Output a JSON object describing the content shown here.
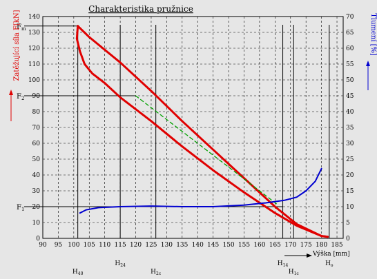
{
  "chart_data": {
    "type": "line",
    "title": "Charakteristika pružnice",
    "xlabel": "Výška [mm]",
    "ylabel_left": "Zatěžující síla F[kN]",
    "ylabel_right": "Tlumení [%]",
    "xlim": [
      90,
      187
    ],
    "ylim_left": [
      0,
      140
    ],
    "ylim_right": [
      0,
      70
    ],
    "grid": true,
    "x_ticks": [
      90,
      95,
      100,
      105,
      110,
      115,
      120,
      125,
      130,
      135,
      140,
      145,
      150,
      155,
      160,
      165,
      170,
      175,
      180,
      185
    ],
    "y_ticks_left": [
      0,
      10,
      20,
      30,
      40,
      50,
      60,
      70,
      80,
      90,
      100,
      110,
      120,
      130,
      140
    ],
    "y_ticks_right": [
      0,
      5,
      10,
      15,
      20,
      25,
      30,
      35,
      40,
      45,
      50,
      55,
      60,
      65,
      70
    ],
    "series": [
      {
        "role": "loading",
        "color": "#e00000",
        "axis": "left",
        "points": [
          [
            101.3,
            134
          ],
          [
            105,
            127
          ],
          [
            115,
            111
          ],
          [
            125,
            93
          ],
          [
            135,
            74
          ],
          [
            145,
            56
          ],
          [
            155,
            38
          ],
          [
            165,
            20
          ],
          [
            172,
            9
          ],
          [
            180,
            1.5
          ],
          [
            182,
            1
          ]
        ]
      },
      {
        "role": "unloading",
        "color": "#e00000",
        "axis": "left",
        "points": [
          [
            101.3,
            134
          ],
          [
            101,
            126
          ],
          [
            102,
            118
          ],
          [
            103.5,
            110
          ],
          [
            106,
            104
          ],
          [
            110,
            98
          ],
          [
            115,
            89
          ],
          [
            125,
            74
          ],
          [
            135,
            58
          ],
          [
            145,
            43
          ],
          [
            155,
            29
          ],
          [
            165,
            16
          ],
          [
            172,
            8
          ],
          [
            180,
            1.5
          ],
          [
            182,
            1
          ]
        ]
      },
      {
        "role": "mean",
        "color": "#00a000",
        "dashed": true,
        "axis": "left",
        "points": [
          [
            120,
            90
          ],
          [
            130,
            75
          ],
          [
            140,
            60
          ],
          [
            150,
            45
          ],
          [
            160,
            30
          ],
          [
            166,
            21
          ]
        ]
      },
      {
        "role": "damping",
        "color": "#0000d0",
        "axis": "right",
        "points": [
          [
            102,
            8
          ],
          [
            104,
            9
          ],
          [
            108,
            9.7
          ],
          [
            115,
            10
          ],
          [
            125,
            10.2
          ],
          [
            135,
            10
          ],
          [
            145,
            10
          ],
          [
            155,
            10.5
          ],
          [
            162,
            11.2
          ],
          [
            168,
            12
          ],
          [
            172,
            13
          ],
          [
            175,
            15
          ],
          [
            178,
            18
          ],
          [
            180,
            22
          ]
        ]
      }
    ],
    "reference_lines": [
      {
        "label": "F",
        "sub": "m",
        "y": 134,
        "x_end": 101.3
      },
      {
        "label": "F",
        "sub": "2",
        "y": 90,
        "x_end": 120
      },
      {
        "label": "F",
        "sub": "1",
        "y": 20,
        "x_end": 167.5
      }
    ],
    "height_marks": [
      {
        "label": "H",
        "sub": "40",
        "x": 101.3,
        "row": 2
      },
      {
        "label": "H",
        "sub": "24",
        "x": 115,
        "row": 1
      },
      {
        "label": "H",
        "sub": "2c",
        "x": 126.5,
        "row": 2
      },
      {
        "label": "H",
        "sub": "14",
        "x": 167.5,
        "row": 1
      },
      {
        "label": "H",
        "sub": "1c",
        "x": 171,
        "row": 2
      },
      {
        "label": "H",
        "sub": "o",
        "x": 182.5,
        "row": 1
      }
    ]
  }
}
